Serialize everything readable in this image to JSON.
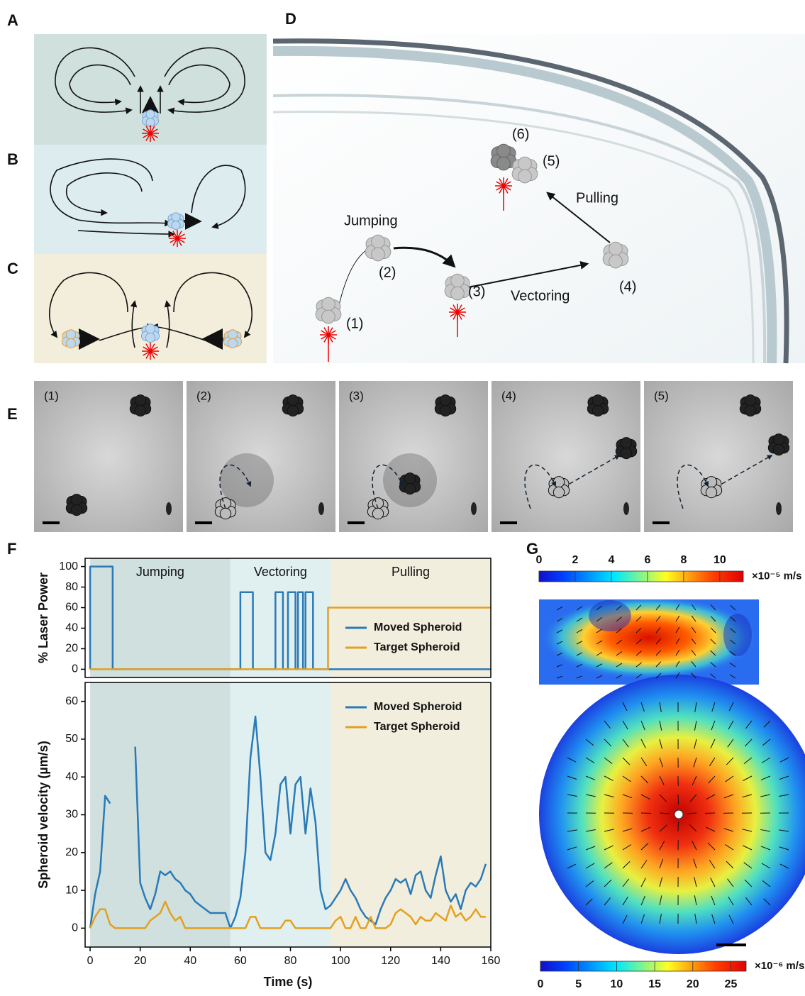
{
  "panel_labels": [
    "A",
    "B",
    "C",
    "D",
    "E",
    "F",
    "G"
  ],
  "panel_d": {
    "steps": [
      "(1)",
      "(2)",
      "(3)",
      "(4)",
      "(5)",
      "(6)"
    ],
    "jumping": "Jumping",
    "vectoring": "Vectoring",
    "pulling": "Pulling"
  },
  "panel_e": {
    "frames": [
      "(1)",
      "(2)",
      "(3)",
      "(4)",
      "(5)"
    ]
  },
  "chart_data": [
    {
      "type": "line",
      "ylabel": "% Laser Power",
      "xlim": [
        -2,
        160
      ],
      "ylim": [
        -8,
        108
      ],
      "yticks": [
        0,
        20,
        40,
        60,
        80,
        100
      ],
      "legend": "lower right",
      "phases": [
        {
          "label": "Jumping",
          "start": 0,
          "end": 56,
          "color": "#cfe0de"
        },
        {
          "label": "Vectoring",
          "start": 56,
          "end": 96,
          "color": "#e0eff0"
        },
        {
          "label": "Pulling",
          "start": 96,
          "end": 160,
          "color": "#f2eedd"
        }
      ],
      "series": [
        {
          "name": "Moved Spheroid",
          "color": "#2a7ab8",
          "x": [
            0,
            0,
            9,
            9,
            60,
            60,
            65,
            65,
            74,
            74,
            77,
            77,
            79,
            79,
            82,
            82,
            83,
            83,
            85,
            85,
            86,
            86,
            89,
            89,
            160
          ],
          "values": [
            0,
            100,
            100,
            0,
            0,
            75,
            75,
            0,
            0,
            75,
            75,
            0,
            0,
            75,
            75,
            0,
            0,
            75,
            75,
            0,
            0,
            75,
            75,
            0,
            0
          ]
        },
        {
          "name": "Target Spheroid",
          "color": "#e3a020",
          "x": [
            0,
            95,
            95,
            160
          ],
          "values": [
            0,
            0,
            60,
            60
          ]
        }
      ]
    },
    {
      "type": "line",
      "xlabel": "Time (s)",
      "ylabel": "Spheroid velocity (µm/s)",
      "xlim": [
        -2,
        160
      ],
      "ylim": [
        -5,
        65
      ],
      "xticks": [
        0,
        20,
        40,
        60,
        80,
        100,
        120,
        140,
        160
      ],
      "yticks": [
        0,
        10,
        20,
        30,
        40,
        50,
        60
      ],
      "legend": "upper right",
      "phases": [
        {
          "start": 0,
          "end": 56,
          "color": "#cfe0de"
        },
        {
          "start": 56,
          "end": 96,
          "color": "#e0eff0"
        },
        {
          "start": 96,
          "end": 160,
          "color": "#f2eedd"
        }
      ],
      "x": [
        0,
        2,
        4,
        6,
        8,
        10,
        12,
        14,
        16,
        18,
        20,
        22,
        24,
        26,
        28,
        30,
        32,
        34,
        36,
        38,
        40,
        42,
        44,
        46,
        48,
        50,
        52,
        54,
        56,
        58,
        60,
        62,
        64,
        66,
        68,
        70,
        72,
        74,
        76,
        78,
        80,
        82,
        84,
        86,
        88,
        90,
        92,
        94,
        96,
        98,
        100,
        102,
        104,
        106,
        108,
        110,
        112,
        114,
        116,
        118,
        120,
        122,
        124,
        126,
        128,
        130,
        132,
        134,
        136,
        138,
        140,
        142,
        144,
        146,
        148,
        150,
        152,
        154,
        156,
        158
      ],
      "series": [
        {
          "name": "Moved Spheroid",
          "color": "#2a7ab8",
          "values": [
            0,
            9,
            15,
            35,
            33,
            null,
            null,
            null,
            null,
            48,
            12,
            8,
            5,
            9,
            15,
            14,
            15,
            13,
            12,
            10,
            9,
            7,
            6,
            5,
            4,
            4,
            4,
            4,
            0,
            3,
            8,
            20,
            45,
            56,
            40,
            20,
            18,
            25,
            38,
            40,
            25,
            38,
            40,
            25,
            37,
            28,
            10,
            5,
            6,
            8,
            10,
            13,
            10,
            8,
            5,
            3,
            2,
            1,
            5,
            8,
            10,
            13,
            12,
            13,
            9,
            14,
            15,
            10,
            8,
            14,
            19,
            10,
            7,
            9,
            5,
            10,
            12,
            11,
            13,
            17
          ]
        },
        {
          "name": "Target Spheroid",
          "color": "#e3a020",
          "values": [
            0,
            3,
            5,
            5,
            1,
            0,
            0,
            0,
            0,
            0,
            0,
            0,
            2,
            3,
            4,
            7,
            4,
            2,
            3,
            0,
            0,
            0,
            0,
            0,
            0,
            0,
            0,
            0,
            0,
            0,
            0,
            0,
            3,
            3,
            0,
            0,
            0,
            0,
            0,
            2,
            2,
            0,
            0,
            0,
            0,
            0,
            0,
            0,
            0,
            2,
            3,
            0,
            0,
            3,
            0,
            0,
            3,
            0,
            0,
            0,
            1,
            4,
            5,
            4,
            3,
            1,
            3,
            2,
            2,
            4,
            3,
            2,
            6,
            3,
            4,
            2,
            3,
            5,
            3,
            3
          ]
        }
      ]
    }
  ],
  "panel_g": {
    "colorbars": [
      {
        "lim": [
          0,
          11.3
        ],
        "ticks": [
          0,
          2,
          4,
          6,
          8,
          10
        ],
        "unit": "×10⁻⁵ m/s"
      },
      {
        "lim": [
          0,
          27
        ],
        "ticks": [
          0,
          5,
          10,
          15,
          20,
          25
        ],
        "unit": "×10⁻⁶ m/s"
      }
    ]
  }
}
